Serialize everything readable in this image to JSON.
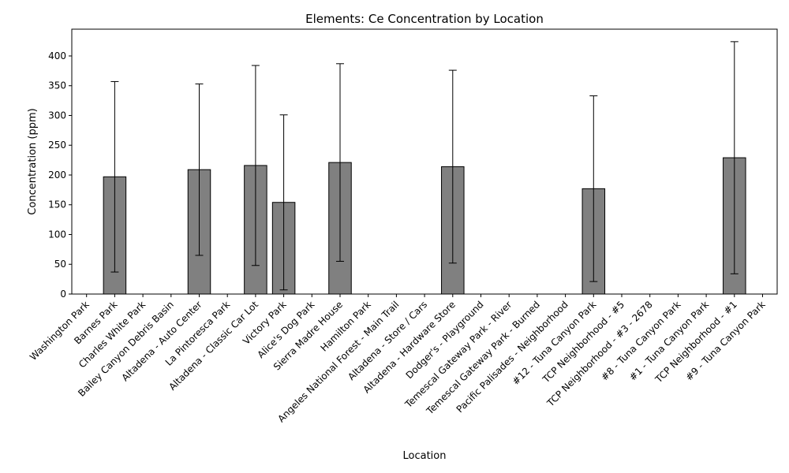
{
  "chart_data": {
    "type": "bar",
    "title": "Elements: Ce Concentration by Location",
    "xlabel": "Location",
    "ylabel": "Concentration (ppm)",
    "ylim": [
      0,
      445
    ],
    "yticks": [
      0,
      50,
      100,
      150,
      200,
      250,
      300,
      350,
      400
    ],
    "grid": false,
    "bar_color": "#808080",
    "edge_color": "#000000",
    "categories": [
      "Washington Park",
      "Barnes Park",
      "Charles White Park",
      "Bailey Canyon Debris Basin",
      "Altadena - Auto Center",
      "La Pintoresca Park",
      "Altadena - Classic Car Lot",
      "Victory Park",
      "Alice's Dog Park",
      "Sierra Madre House",
      "Hamilton Park",
      "Angeles National Forest - Main Trail",
      "Altadena - Store / Cars",
      "Altadena - Hardware Store",
      "Dodger's - Playground",
      "Temescal Gateway Park - River",
      "Temescal Gateway Park - Burned",
      "Pacific Palisades - Neighborhood",
      "#12 - Tuna Canyon Park",
      "TCP Neighborhood - #5",
      "TCP Neighborhood - #3 - 2678",
      "#8 - Tuna Canyon Park",
      "#1 - Tuna Canyon Park",
      "TCP Neighborhood - #1",
      "#9 - Tuna Canyon Park"
    ],
    "values": [
      null,
      197,
      null,
      null,
      209,
      null,
      216,
      154,
      null,
      221,
      null,
      null,
      null,
      214,
      null,
      null,
      null,
      null,
      177,
      null,
      null,
      null,
      null,
      229,
      null
    ],
    "error": [
      null,
      160,
      null,
      null,
      144,
      null,
      168,
      147,
      null,
      166,
      null,
      null,
      null,
      162,
      null,
      null,
      null,
      null,
      156,
      null,
      null,
      null,
      null,
      195,
      null
    ]
  }
}
